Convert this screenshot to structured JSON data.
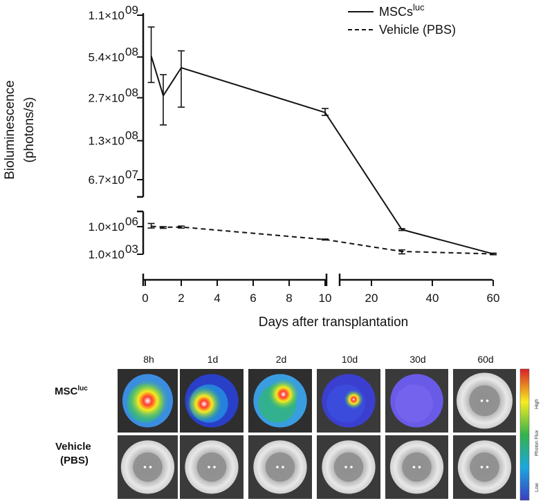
{
  "chart_data": {
    "type": "line",
    "xlabel": "Days after transplantation",
    "ylabel_line1": "Bioluminescence",
    "ylabel_line2": "(photons/s)",
    "x_ticks_left": [
      "0",
      "2",
      "4",
      "6",
      "8",
      "10"
    ],
    "x_ticks_right": [
      "20",
      "40",
      "60"
    ],
    "x_break_between": [
      10,
      20
    ],
    "y_ticks_upper": [
      {
        "label": "1.1×10",
        "exp": "09",
        "value": 1100000000
      },
      {
        "label": "5.4×10",
        "exp": "08",
        "value": 540000000
      },
      {
        "label": "2.7×10",
        "exp": "08",
        "value": 270000000
      },
      {
        "label": "1.3×10",
        "exp": "08",
        "value": 130000000
      },
      {
        "label": "6.7×10",
        "exp": "07",
        "value": 67000000
      }
    ],
    "y_ticks_lower": [
      {
        "label": "1.0×10",
        "exp": "06",
        "value": 1000000
      },
      {
        "label": "1.0×10",
        "exp": "03",
        "value": 1000
      }
    ],
    "y_scale": "log (broken axis)",
    "legend_position": "top-right",
    "series": [
      {
        "legend_main": "MSCs",
        "legend_sup": "luc",
        "style": "solid",
        "x": [
          0.33,
          1,
          2,
          10,
          30,
          60
        ],
        "y": [
          550000000,
          280000000,
          450000000,
          210000000,
          480000,
          1100
        ],
        "err_low": [
          350000000,
          170000000,
          230000000,
          200000000,
          380000,
          900
        ],
        "err_high": [
          900000000,
          400000000,
          600000000,
          225000000,
          600000,
          1300
        ]
      },
      {
        "legend_main": "Vehicle (PBS)",
        "legend_sup": "",
        "style": "dashed",
        "x": [
          0.33,
          1,
          2,
          10,
          30,
          60
        ],
        "y": [
          1100000,
          850000,
          900000,
          40000,
          2000,
          1100
        ],
        "err_low": [
          700000,
          650000,
          700000,
          35000,
          1100,
          900
        ],
        "err_high": [
          2200000,
          1000000,
          1150000,
          45000,
          3000,
          1300
        ]
      }
    ]
  },
  "imaging_panel": {
    "columns": [
      "8h",
      "1d",
      "2d",
      "10d",
      "30d",
      "60d"
    ],
    "row_msc_main": "MSC",
    "row_msc_sup": "luc",
    "row_vehicle_line1": "Vehicle",
    "row_vehicle_line2": "(PBS)",
    "colorbar_high": "High",
    "colorbar_mid": "Photon Flux",
    "colorbar_low": "Low"
  },
  "colors": {
    "line": "#111111",
    "photo_background": "#3a3a3a",
    "colorbar": [
      "#d81f26",
      "#f6ec1f",
      "#33b34a",
      "#1ba7e0",
      "#3a3fbf"
    ]
  }
}
